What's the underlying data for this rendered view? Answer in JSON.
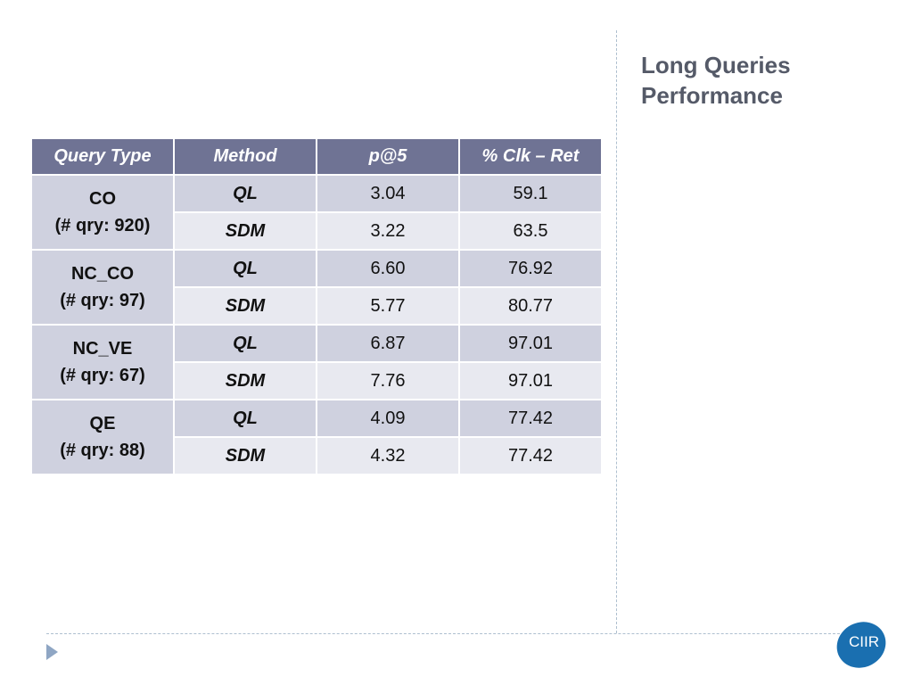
{
  "slide": {
    "title_line1": "Long Queries",
    "title_line2": "Performance",
    "logo_text": "CIIR"
  },
  "table": {
    "headers": [
      "Query Type",
      "Method",
      "p@5",
      "% Clk – Ret"
    ],
    "groups": [
      {
        "name": "CO",
        "count": "(# qry: 920)",
        "rows": [
          {
            "method": "QL",
            "p5": "3.04",
            "clk_ret": "59.1"
          },
          {
            "method": "SDM",
            "p5": "3.22",
            "clk_ret": "63.5"
          }
        ]
      },
      {
        "name": "NC_CO",
        "count": "(# qry: 97)",
        "rows": [
          {
            "method": "QL",
            "p5": "6.60",
            "clk_ret": "76.92"
          },
          {
            "method": "SDM",
            "p5": "5.77",
            "clk_ret": "80.77"
          }
        ]
      },
      {
        "name": "NC_VE",
        "count": "(# qry: 67)",
        "rows": [
          {
            "method": "QL",
            "p5": "6.87",
            "clk_ret": "97.01"
          },
          {
            "method": "SDM",
            "p5": "7.76",
            "clk_ret": "97.01"
          }
        ]
      },
      {
        "name": "QE",
        "count": "(# qry: 88)",
        "rows": [
          {
            "method": "QL",
            "p5": "4.09",
            "clk_ret": "77.42"
          },
          {
            "method": "SDM",
            "p5": "4.32",
            "clk_ret": "77.42"
          }
        ]
      }
    ]
  },
  "colors": {
    "header_bg": "#6f7394",
    "row_dark": "#cfd1df",
    "row_light": "#e8e9f0",
    "title": "#555a68",
    "logo": "#1a6fb0"
  }
}
